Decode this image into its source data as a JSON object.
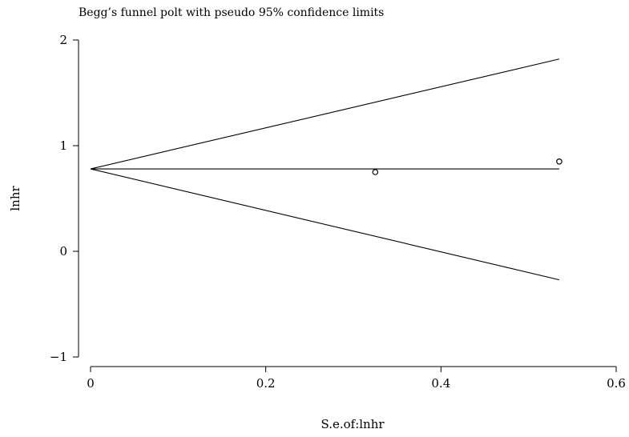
{
  "chart_data": {
    "type": "scatter",
    "title": "Begg’s funnel polt with pseudo 95% confidence limits",
    "xlabel": "S.e.of:lnhr",
    "ylabel": "lnhr",
    "xlim": [
      -0.01,
      0.61
    ],
    "ylim": [
      -1.1,
      2.2
    ],
    "xticks": [
      0,
      0.2,
      0.4,
      0.6
    ],
    "xtick_labels": [
      "0",
      "0.2",
      "0.4",
      "0.6"
    ],
    "yticks": [
      -1,
      0,
      1,
      2
    ],
    "ytick_labels": [
      "−1",
      "0",
      "1",
      "2"
    ],
    "grid": false,
    "pooled_estimate": 0.78,
    "funnel_lines": {
      "center": {
        "x": [
          0,
          0.535
        ],
        "y": [
          0.78,
          0.78
        ]
      },
      "upper": {
        "x": [
          0,
          0.535
        ],
        "y": [
          0.78,
          1.82
        ]
      },
      "lower": {
        "x": [
          0,
          0.535
        ],
        "y": [
          0.78,
          -0.27
        ]
      }
    },
    "points": [
      {
        "x": 0.325,
        "y": 0.75
      },
      {
        "x": 0.535,
        "y": 0.85
      }
    ]
  }
}
